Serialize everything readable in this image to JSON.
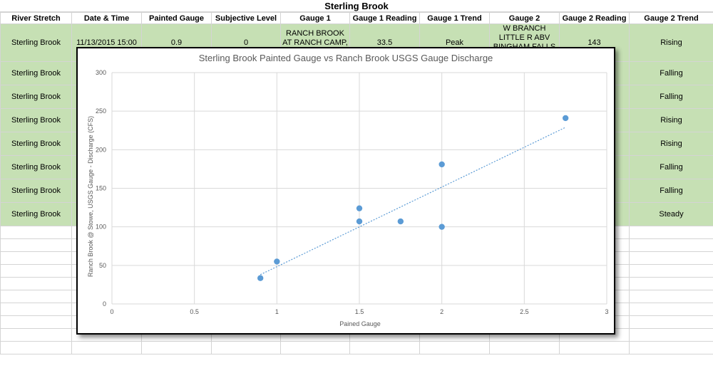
{
  "sheet": {
    "title": "Sterling Brook",
    "headers": [
      "River Stretch",
      "Date & Time",
      "Painted Gauge",
      "Subjective Level",
      "Gauge 1",
      "Gauge 1 Reading",
      "Gauge 1 Trend",
      "Gauge 2",
      "Gauge 2 Reading",
      "Gauge 2 Trend"
    ],
    "first_row": {
      "river_stretch": "Sterling Brook",
      "date_time": "11/13/2015 15:00",
      "painted_gauge": "0.9",
      "subjective_level": "0",
      "gauge1": "RANCH BROOK AT RANCH CAMP, NEAR STOWE, VT",
      "gauge1_reading": "33.5",
      "gauge1_trend": "Peak",
      "gauge2": "W BRANCH LITTLE R ABV BINGHAM FALLS NEAR STOWE, VT",
      "gauge2_reading": "143",
      "gauge2_trend": "Rising"
    },
    "river_stretch_column": [
      "Sterling Brook",
      "Sterling Brook",
      "Sterling Brook",
      "Sterling Brook",
      "Sterling Brook",
      "Sterling Brook",
      "Sterling Brook",
      "Sterling Brook"
    ],
    "gauge2_trend_column": [
      "Rising",
      "Falling",
      "Falling",
      "Rising",
      "Rising",
      "Falling",
      "Falling",
      "Steady"
    ]
  },
  "chart_data": {
    "type": "scatter",
    "title": "Sterling Brook Painted Gauge vs Ranch Brook USGS Gauge Discharge",
    "xlabel": "Pained Gauge",
    "ylabel": "Ranch Brook @ Stowe, USGS Gauge - Discharge (CFS)",
    "xlim": [
      0,
      3
    ],
    "ylim": [
      0,
      300
    ],
    "xticks": [
      0,
      0.5,
      1,
      1.5,
      2,
      2.5,
      3
    ],
    "yticks": [
      0,
      50,
      100,
      150,
      200,
      250,
      300
    ],
    "grid": "vertical-and-horizontal",
    "points": [
      {
        "x": 0.9,
        "y": 33.5
      },
      {
        "x": 1.0,
        "y": 55
      },
      {
        "x": 1.5,
        "y": 124
      },
      {
        "x": 1.5,
        "y": 107
      },
      {
        "x": 1.75,
        "y": 107
      },
      {
        "x": 2.0,
        "y": 181
      },
      {
        "x": 2.0,
        "y": 100
      },
      {
        "x": 2.75,
        "y": 241
      }
    ],
    "trendline": {
      "x": [
        0.9,
        2.75
      ],
      "y": [
        38,
        229
      ]
    },
    "colors": {
      "marker": "#5b9bd5",
      "trendline": "#5b9bd5",
      "grid": "#d9d9d9"
    }
  }
}
